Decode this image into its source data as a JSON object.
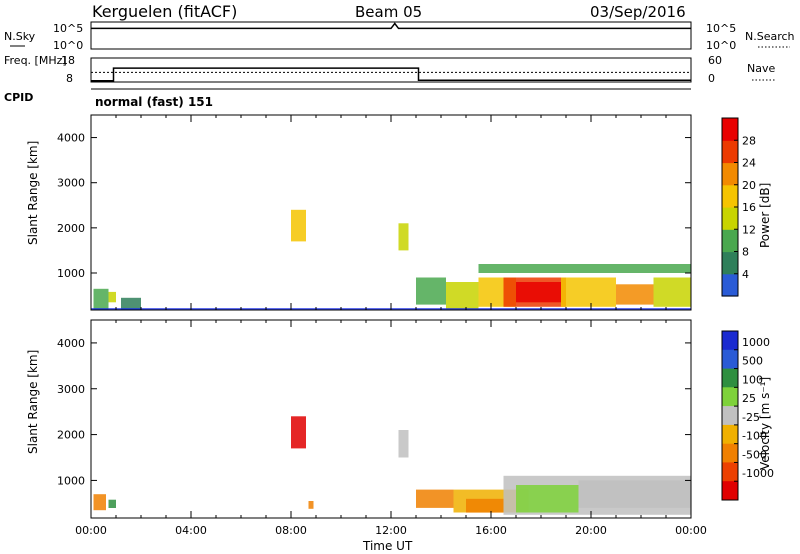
{
  "header": {
    "station": "Kerguelen (fitACF)",
    "beam": "Beam 05",
    "date": "03/Sep/2016"
  },
  "colors": {
    "power_scale": [
      "#1428e6",
      "#2a5bd6",
      "#2f7f5a",
      "#4aa84f",
      "#c8d400",
      "#f5c400",
      "#f28a00",
      "#ec3a00",
      "#e80000"
    ],
    "velocity_scale": [
      "#1a2ad0",
      "#2a5bd6",
      "#2f8f40",
      "#7ed23a",
      "#c0c0c0",
      "#f0b000",
      "#f08000",
      "#ec4000",
      "#e00000"
    ],
    "line": "#000000"
  },
  "panels": {
    "nsky": {
      "label": "N.Sky",
      "ticks_left": [
        "10^5",
        "10^0"
      ],
      "ticks_right": [
        "10^5",
        "10^0"
      ],
      "right_label": "N.Search",
      "series": {
        "x": [
          0,
          12.0,
          12.15,
          12.3,
          24
        ],
        "y": [
          4.2,
          4.2,
          5.2,
          4.2,
          4.2
        ]
      }
    },
    "freq": {
      "label": "Freq. [MHz]",
      "ticks_left": [
        "18",
        "8"
      ],
      "ticks_right": [
        "60",
        "0"
      ],
      "right_label": "Nave",
      "freq_series": {
        "x": [
          0,
          0.9,
          0.9,
          13.1,
          13.1,
          24
        ],
        "y": [
          8.5,
          8.5,
          13.8,
          13.8,
          8.7,
          8.7
        ]
      },
      "nave_series": {
        "x": [
          0,
          24
        ],
        "y": [
          12.0,
          12.0
        ]
      }
    },
    "cpid": {
      "label": "CPID",
      "value": "normal (fast) 151"
    }
  },
  "chart_data": [
    {
      "type": "heatmap",
      "name": "power",
      "ylabel": "Slant Range [km]",
      "xlabel": "",
      "ylim": [
        180,
        4500
      ],
      "xlim": [
        0,
        24
      ],
      "yticks": [
        "1000",
        "2000",
        "3000",
        "4000"
      ],
      "colorbar": {
        "label": "Power [dB]",
        "ticks": [
          "4",
          "8",
          "12",
          "16",
          "20",
          "24",
          "28"
        ],
        "range": [
          0,
          32
        ]
      },
      "data": [
        {
          "t0": 0.1,
          "t1": 0.7,
          "r0": 180,
          "r1": 650,
          "level": 3
        },
        {
          "t0": 0.7,
          "t1": 1.0,
          "r0": 350,
          "r1": 580,
          "level": 4
        },
        {
          "t0": 1.2,
          "t1": 2.0,
          "r0": 180,
          "r1": 450,
          "level": 2
        },
        {
          "t0": 8.0,
          "t1": 8.6,
          "r0": 1700,
          "r1": 2400,
          "level": 5
        },
        {
          "t0": 12.3,
          "t1": 12.7,
          "r0": 1500,
          "r1": 2100,
          "level": 4
        },
        {
          "t0": 13.0,
          "t1": 14.2,
          "r0": 300,
          "r1": 900,
          "level": 3
        },
        {
          "t0": 14.2,
          "t1": 15.5,
          "r0": 200,
          "r1": 800,
          "level": 4
        },
        {
          "t0": 15.5,
          "t1": 17.0,
          "r0": 250,
          "r1": 900,
          "level": 5
        },
        {
          "t0": 16.5,
          "t1": 19.0,
          "r0": 250,
          "r1": 900,
          "level": 7
        },
        {
          "t0": 17.0,
          "t1": 18.8,
          "r0": 350,
          "r1": 800,
          "level": 8
        },
        {
          "t0": 18.8,
          "t1": 21.0,
          "r0": 250,
          "r1": 900,
          "level": 5
        },
        {
          "t0": 21.0,
          "t1": 22.5,
          "r0": 300,
          "r1": 750,
          "level": 6
        },
        {
          "t0": 22.5,
          "t1": 24.0,
          "r0": 250,
          "r1": 900,
          "level": 4
        },
        {
          "t0": 15.5,
          "t1": 24.0,
          "r0": 1000,
          "r1": 1200,
          "level": 3
        },
        {
          "t0": 0.0,
          "t1": 24.0,
          "r0": 180,
          "r1": 220,
          "level": 0
        }
      ]
    },
    {
      "type": "heatmap",
      "name": "velocity",
      "ylabel": "Slant Range [km]",
      "xlabel": "Time UT",
      "ylim": [
        180,
        4500
      ],
      "xlim": [
        0,
        24
      ],
      "yticks": [
        "1000",
        "2000",
        "3000",
        "4000"
      ],
      "xticks": [
        "00:00",
        "04:00",
        "08:00",
        "12:00",
        "16:00",
        "20:00",
        "00:00"
      ],
      "colorbar": {
        "label": "Velocity [m s⁻¹]",
        "ticks": [
          "1000",
          "500",
          "100",
          "25",
          "-25",
          "-100",
          "-500",
          "-1000"
        ]
      },
      "data": [
        {
          "t0": 0.1,
          "t1": 0.6,
          "r0": 350,
          "r1": 700,
          "level": 6
        },
        {
          "t0": 0.7,
          "t1": 1.0,
          "r0": 400,
          "r1": 580,
          "level": 2
        },
        {
          "t0": 8.0,
          "t1": 8.6,
          "r0": 1700,
          "r1": 2400,
          "level": 8
        },
        {
          "t0": 8.7,
          "t1": 8.9,
          "r0": 380,
          "r1": 550,
          "level": 6
        },
        {
          "t0": 12.3,
          "t1": 12.7,
          "r0": 1500,
          "r1": 2100,
          "level": 4
        },
        {
          "t0": 13.0,
          "t1": 14.5,
          "r0": 400,
          "r1": 800,
          "level": 6
        },
        {
          "t0": 14.5,
          "t1": 17.5,
          "r0": 300,
          "r1": 800,
          "level": 5
        },
        {
          "t0": 15.0,
          "t1": 16.5,
          "r0": 300,
          "r1": 600,
          "level": 6
        },
        {
          "t0": 16.5,
          "t1": 24.0,
          "r0": 250,
          "r1": 1100,
          "level": 4
        },
        {
          "t0": 17.0,
          "t1": 19.5,
          "r0": 300,
          "r1": 900,
          "level": 3
        },
        {
          "t0": 19.5,
          "t1": 24.0,
          "r0": 400,
          "r1": 1000,
          "level": 4
        }
      ]
    }
  ]
}
